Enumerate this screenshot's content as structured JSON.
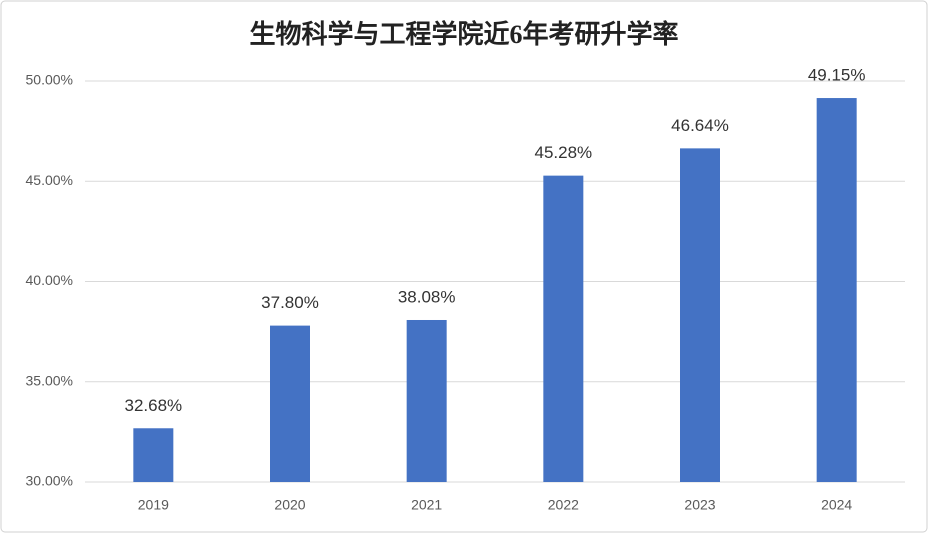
{
  "chart_data": {
    "type": "bar",
    "title": "生物科学与工程学院近6年考研升学率",
    "categories": [
      "2019",
      "2020",
      "2021",
      "2022",
      "2023",
      "2024"
    ],
    "values": [
      32.68,
      37.8,
      38.08,
      45.28,
      46.64,
      49.15
    ],
    "value_labels": [
      "32.68%",
      "37.80%",
      "38.08%",
      "45.28%",
      "46.64%",
      "49.15%"
    ],
    "color": "#4472c4",
    "ylim": [
      30,
      50
    ],
    "yticks": [
      {
        "value": 30,
        "label": "30.00%"
      },
      {
        "value": 35,
        "label": "35.00%"
      },
      {
        "value": 40,
        "label": "40.00%"
      },
      {
        "value": 45,
        "label": "45.00%"
      },
      {
        "value": 50,
        "label": "50.00%"
      }
    ],
    "grid": true
  }
}
